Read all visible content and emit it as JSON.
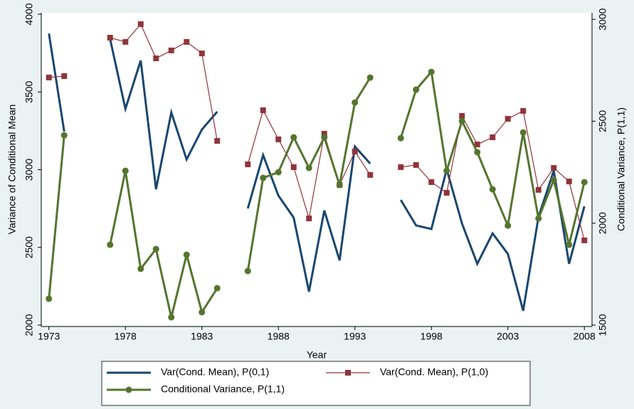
{
  "chart_data": {
    "type": "line",
    "xlabel": "Year",
    "ylabel": "Variance of Conditional Mean",
    "y2label": "Conditional Variance, P(1,1)",
    "x": [
      1973,
      1974,
      1975,
      1976,
      1977,
      1978,
      1979,
      1980,
      1981,
      1982,
      1983,
      1984,
      1985,
      1986,
      1987,
      1988,
      1989,
      1990,
      1991,
      1992,
      1993,
      1994,
      1995,
      1996,
      1997,
      1998,
      1999,
      2000,
      2001,
      2002,
      2003,
      2004,
      2005,
      2006,
      2007,
      2008
    ],
    "xlim": [
      1972.5,
      2008.5
    ],
    "xticks": [
      1973,
      1978,
      1983,
      1988,
      1993,
      1998,
      2003,
      2008
    ],
    "ylim": [
      2000,
      4000
    ],
    "yticks": [
      2000,
      2500,
      3000,
      3500,
      4000
    ],
    "y2lim": [
      1500,
      3025
    ],
    "y2ticks": [
      1500,
      2000,
      2500,
      3000
    ],
    "legend": "bottom",
    "series": [
      {
        "name": "Var(Cond. Mean), P(0,1)",
        "color": "#1a476f",
        "marker": "none",
        "axis": "y",
        "values": [
          3876,
          3245,
          null,
          null,
          3840,
          3391,
          3702,
          2874,
          3368,
          3066,
          3258,
          3373,
          null,
          2750,
          3094,
          2833,
          2691,
          2215,
          2737,
          2416,
          3149,
          3039,
          null,
          2805,
          2641,
          2618,
          3002,
          2654,
          2394,
          2590,
          2458,
          2092,
          2696,
          2993,
          2394,
          2764
        ]
      },
      {
        "name": "Var(Cond. Mean), P(1,0)",
        "color": "#90353b",
        "marker": "square",
        "axis": "y",
        "values": [
          3593,
          3602,
          null,
          null,
          3849,
          3822,
          3936,
          3716,
          3767,
          3822,
          3748,
          3185,
          null,
          3034,
          3382,
          3195,
          3016,
          2686,
          3231,
          2902,
          3117,
          2966,
          null,
          3016,
          3030,
          2920,
          2851,
          3346,
          3162,
          3208,
          3327,
          3378,
          2870,
          3011,
          2924,
          2545
        ]
      },
      {
        "name": "Conditional Variance, P(1,1)",
        "color": "#55752f",
        "marker": "circle",
        "axis": "y2",
        "values": [
          1629,
          2431,
          null,
          null,
          1894,
          2257,
          1776,
          1873,
          1538,
          1845,
          1563,
          1681,
          null,
          1765,
          2222,
          2250,
          2421,
          2271,
          2421,
          2187,
          2592,
          2714,
          null,
          2417,
          2655,
          2742,
          2257,
          2501,
          2348,
          2166,
          1988,
          2445,
          2023,
          2212,
          1894,
          2201
        ]
      }
    ]
  }
}
